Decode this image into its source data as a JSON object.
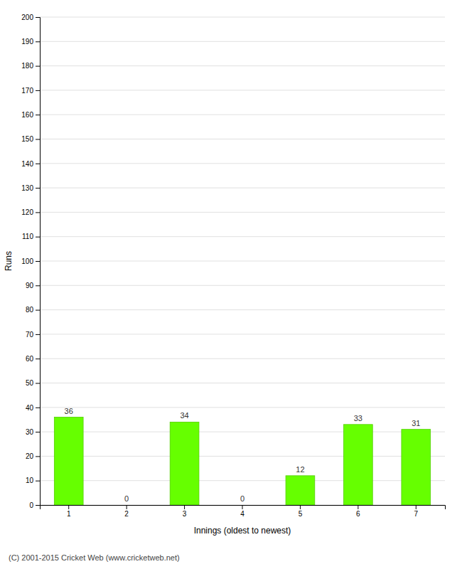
{
  "chart_data": {
    "type": "bar",
    "categories": [
      "1",
      "2",
      "3",
      "4",
      "5",
      "6",
      "7"
    ],
    "values": [
      36,
      0,
      34,
      0,
      12,
      33,
      31
    ],
    "color": "#66ff00",
    "xlabel": "Innings (oldest to newest)",
    "ylabel": "Runs",
    "ylim": [
      0,
      200
    ],
    "yticks": [
      0,
      10,
      20,
      30,
      40,
      50,
      60,
      70,
      80,
      90,
      100,
      110,
      120,
      130,
      140,
      150,
      160,
      170,
      180,
      190,
      200
    ],
    "grid": true,
    "data_labels": true,
    "annotations": [
      "(C) 2001-2015 Cricket Web (www.cricketweb.net)"
    ]
  }
}
